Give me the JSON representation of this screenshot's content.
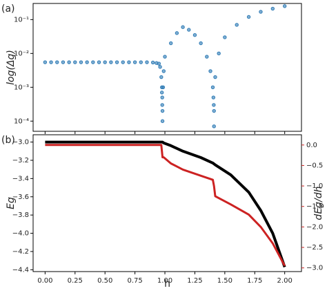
{
  "chart_data": [
    {
      "type": "scatter",
      "panel_label": "(a)",
      "y_label": "log(Δg)",
      "log_y": true,
      "xlim": [
        -0.1,
        2.14
      ],
      "xticks": [
        0,
        0.25,
        0.5,
        0.75,
        1,
        1.25,
        1.5,
        1.75,
        2
      ],
      "ylim": [
        5e-05,
        0.3
      ],
      "yticks": [
        {
          "value": 0.0001,
          "label": "10⁻⁴"
        },
        {
          "value": 0.001,
          "label": "10⁻³"
        },
        {
          "value": 0.01,
          "label": "10⁻²"
        },
        {
          "value": 0.1,
          "label": "10⁻¹"
        }
      ],
      "series": [
        {
          "color": "#2f7bb5",
          "x": [
            0,
            0.05,
            0.1,
            0.15,
            0.2,
            0.25,
            0.3,
            0.35,
            0.4,
            0.45,
            0.5,
            0.55,
            0.6,
            0.65,
            0.7,
            0.75,
            0.8,
            0.85,
            0.9,
            0.93,
            0.95,
            0.96,
            0.97,
            0.975,
            0.975,
            0.978,
            0.978,
            0.98,
            0.98,
            0.985,
            0.99,
            1.0,
            1.05,
            1.1,
            1.15,
            1.2,
            1.25,
            1.3,
            1.35,
            1.38,
            1.4,
            1.405,
            1.408,
            1.41,
            1.41,
            1.42,
            1.45,
            1.5,
            1.6,
            1.7,
            1.8,
            1.9,
            2.0
          ],
          "values": [
            0.0055,
            0.0055,
            0.0055,
            0.0055,
            0.0055,
            0.0055,
            0.0055,
            0.0055,
            0.0055,
            0.0055,
            0.0055,
            0.0055,
            0.0055,
            0.0055,
            0.0055,
            0.0055,
            0.0055,
            0.0055,
            0.0054,
            0.0052,
            0.005,
            0.004,
            0.002,
            0.001,
            0.0007,
            0.0005,
            0.0003,
            0.0002,
            0.0001,
            0.001,
            0.003,
            0.008,
            0.02,
            0.04,
            0.06,
            0.05,
            0.035,
            0.02,
            0.008,
            0.003,
            0.001,
            0.0005,
            0.0003,
            0.0002,
            7e-05,
            0.002,
            0.01,
            0.03,
            0.07,
            0.12,
            0.17,
            0.21,
            0.25
          ]
        }
      ]
    },
    {
      "type": "line",
      "panel_label": "(b)",
      "y_label": "Eg",
      "y2_label": "dEg/dh",
      "x_label": "h",
      "xlim": [
        -0.1,
        2.14
      ],
      "xticks": [
        {
          "value": 0,
          "label": "0.00"
        },
        {
          "value": 0.25,
          "label": "0.25"
        },
        {
          "value": 0.5,
          "label": "0.50"
        },
        {
          "value": 0.75,
          "label": "0.75"
        },
        {
          "value": 1,
          "label": "1.00"
        },
        {
          "value": 1.25,
          "label": "1.25"
        },
        {
          "value": 1.5,
          "label": "1.50"
        },
        {
          "value": 1.75,
          "label": "1.75"
        },
        {
          "value": 2,
          "label": "2.00"
        }
      ],
      "ylim": [
        -4.42,
        -2.92
      ],
      "yticks": [
        {
          "value": -3.0,
          "label": "−3.0"
        },
        {
          "value": -3.2,
          "label": "−3.2"
        },
        {
          "value": -3.4,
          "label": "−3.4"
        },
        {
          "value": -3.6,
          "label": "−3.6"
        },
        {
          "value": -3.8,
          "label": "−3.8"
        },
        {
          "value": -4.0,
          "label": "−4.0"
        },
        {
          "value": -4.2,
          "label": "−4.2"
        },
        {
          "value": -4.4,
          "label": "−4.4"
        }
      ],
      "y2lim": [
        -3.09,
        0.25
      ],
      "y2ticks": [
        {
          "value": 0,
          "label": "0.0"
        },
        {
          "value": -0.5,
          "label": "−0.5"
        },
        {
          "value": -1.0,
          "label": "−1.0"
        },
        {
          "value": -1.5,
          "label": "−1.5"
        },
        {
          "value": -2.0,
          "label": "−2.0"
        },
        {
          "value": -2.5,
          "label": "−2.5"
        },
        {
          "value": -3.0,
          "label": "−3.0"
        }
      ],
      "y2_color": "#cc2222",
      "x": [
        0,
        0.25,
        0.5,
        0.75,
        0.95,
        0.97,
        0.98,
        0.99,
        1.05,
        1.15,
        1.3,
        1.4,
        1.41,
        1.42,
        1.55,
        1.7,
        1.8,
        1.9,
        2.0
      ],
      "series": [
        {
          "color": "#000000",
          "values": [
            -3.0,
            -3.0,
            -3.0,
            -3.0,
            -3.0,
            -3.0,
            -3.0,
            -3.01,
            -3.04,
            -3.1,
            -3.17,
            -3.23,
            -3.24,
            -3.25,
            -3.36,
            -3.55,
            -3.75,
            -4.0,
            -4.37
          ]
        },
        {
          "color": "#cc2222",
          "axis": "y2",
          "values": [
            0,
            0,
            0,
            0,
            0,
            0,
            -0.3,
            -0.3,
            -0.45,
            -0.6,
            -0.75,
            -0.85,
            -1.0,
            -1.25,
            -1.45,
            -1.7,
            -2.0,
            -2.4,
            -2.95
          ]
        }
      ]
    }
  ]
}
